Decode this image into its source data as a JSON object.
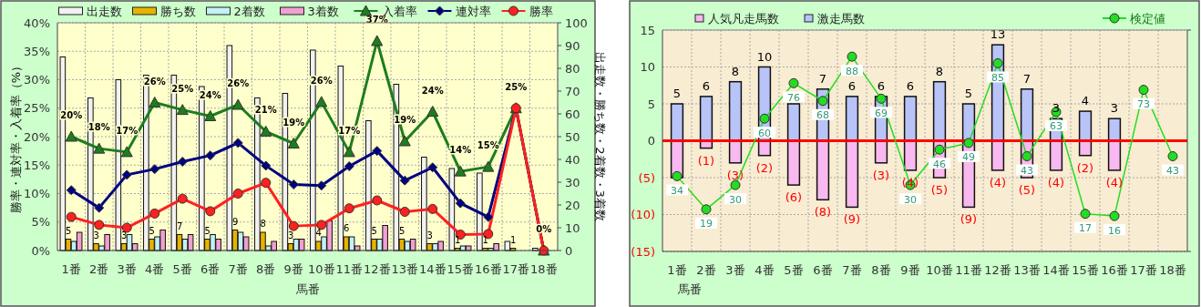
{
  "chart_data": [
    {
      "type": "bar",
      "xlabel": "馬番",
      "ylabel": "勝率・連対率・入着率（%）",
      "y2label": "出走数・勝ち数・2着数・3着数",
      "categories": [
        "1番",
        "2番",
        "3番",
        "4番",
        "5番",
        "6番",
        "7番",
        "8番",
        "9番",
        "10番",
        "11番",
        "12番",
        "13番",
        "14番",
        "15番",
        "16番",
        "17番",
        "18番"
      ],
      "series": [
        {
          "name": "出走数",
          "type": "bar",
          "axis": "y2",
          "color": "#f2f2f2",
          "values": [
            85,
            67,
            75,
            77,
            77,
            72,
            90,
            67,
            69,
            88,
            81,
            57,
            73,
            41,
            36,
            34,
            4,
            1
          ]
        },
        {
          "name": "勝ち数",
          "type": "bar",
          "axis": "y2",
          "color": "#e6b400",
          "values": [
            5,
            3,
            3,
            5,
            7,
            5,
            9,
            8,
            3,
            4,
            6,
            5,
            5,
            3,
            1,
            1,
            1,
            0
          ],
          "value_labels": [
            "5",
            "3",
            "3",
            "5",
            "7",
            "5",
            "9",
            "8",
            "3",
            "4",
            "6",
            "5",
            "5",
            "3",
            "1",
            "1",
            "1",
            null
          ]
        },
        {
          "name": "2着数",
          "type": "bar",
          "axis": "y2",
          "color": "#c4f0f8",
          "values": [
            4,
            2,
            7,
            6,
            5,
            7,
            8,
            2,
            5,
            6,
            6,
            5,
            4,
            3,
            2,
            1,
            0,
            0
          ]
        },
        {
          "name": "3着数",
          "type": "bar",
          "axis": "y2",
          "color": "#f0a0d0",
          "values": [
            8,
            7,
            3,
            9,
            7,
            5,
            6,
            4,
            5,
            13,
            2,
            11,
            5,
            4,
            2,
            3,
            0,
            0
          ]
        },
        {
          "name": "入着率",
          "type": "line",
          "marker": "triangle",
          "color": "#1e7d1e",
          "values": [
            20.0,
            17.9,
            17.3,
            26.0,
            24.7,
            23.6,
            25.6,
            20.9,
            18.8,
            26.1,
            17.3,
            36.8,
            19.2,
            24.4,
            13.9,
            14.7,
            25,
            0
          ],
          "value_labels": [
            "20%",
            "18%",
            "17%",
            "26%",
            "25%",
            "24%",
            "26%",
            "21%",
            "19%",
            "26%",
            "17%",
            "37%",
            "19%",
            "24%",
            "14%",
            "15%",
            "25%",
            "0%"
          ]
        },
        {
          "name": "連対率",
          "type": "line",
          "marker": "diamond",
          "color": "#000080",
          "values": [
            10.6,
            7.5,
            13.3,
            14.3,
            15.6,
            16.7,
            18.9,
            14.9,
            11.6,
            11.4,
            14.8,
            17.5,
            12.3,
            14.6,
            8.3,
            5.9,
            25,
            0
          ]
        },
        {
          "name": "勝率",
          "type": "line",
          "marker": "circle",
          "color": "#ff2020",
          "values": [
            5.9,
            4.5,
            4.0,
            6.5,
            9.1,
            6.9,
            10.0,
            11.9,
            4.3,
            4.5,
            7.4,
            8.8,
            6.8,
            7.3,
            2.8,
            2.9,
            25,
            0
          ]
        }
      ],
      "ylim": [
        0,
        40
      ],
      "yticks": [
        {
          "value": 0,
          "label": "0%"
        },
        {
          "value": 5,
          "label": "5%"
        },
        {
          "value": 10,
          "label": "10%"
        },
        {
          "value": 15,
          "label": "15%"
        },
        {
          "value": 20,
          "label": "20%"
        },
        {
          "value": 25,
          "label": "25%"
        },
        {
          "value": 30,
          "label": "30%"
        },
        {
          "value": 35,
          "label": "35%"
        },
        {
          "value": 40,
          "label": "40%"
        }
      ],
      "y2lim": [
        0,
        100
      ],
      "y2ticks": [
        0,
        10,
        20,
        30,
        40,
        50,
        60,
        70,
        80,
        90,
        100
      ],
      "grid": true,
      "legend": "top"
    },
    {
      "type": "bar",
      "xlabel": "馬番",
      "categories": [
        "1番",
        "2番",
        "3番",
        "4番",
        "5番",
        "6番",
        "7番",
        "8番",
        "9番",
        "10番",
        "11番",
        "12番",
        "13番",
        "14番",
        "15番",
        "16番",
        "17番",
        "18番"
      ],
      "stacked": true,
      "series": [
        {
          "name": "人気凡走馬数",
          "type": "bar",
          "color": "#f8b8f0",
          "values": [
            -5,
            -1,
            -3,
            -2,
            -6,
            -8,
            -9,
            -3,
            -4,
            -5,
            -9,
            -4,
            -5,
            -4,
            -2,
            -4,
            null,
            null
          ],
          "value_labels": [
            null,
            "(1)",
            "(3)",
            "(2)",
            "(6)",
            "(8)",
            "(9)",
            "(3)",
            "(4)",
            "(5)",
            "(9)",
            "(4)",
            "(5)",
            "(4)",
            "(2)",
            "(4)",
            null,
            null
          ]
        },
        {
          "name": "激走馬数",
          "type": "bar",
          "color": "#b8c4f8",
          "values": [
            5,
            6,
            8,
            10,
            5,
            7,
            6,
            6,
            6,
            8,
            5,
            13,
            7,
            3,
            4,
            3,
            null,
            null
          ],
          "value_labels": [
            "5",
            "6",
            "8",
            "10",
            null,
            "7",
            "6",
            "6",
            "6",
            "8",
            "5",
            "13",
            "7",
            "3",
            "4",
            "3",
            null,
            null
          ]
        },
        {
          "name": "検定値",
          "type": "line",
          "axis": "y2",
          "marker": "circle",
          "color": "#22dd22",
          "values": [
            34,
            19,
            30,
            60,
            76,
            68,
            88,
            69,
            30,
            46,
            49,
            85,
            43,
            63,
            17,
            16,
            73,
            43
          ],
          "value_labels": [
            "34",
            "19",
            "30",
            "60",
            "76",
            "68",
            "88",
            "69",
            "30",
            "46",
            "49",
            "85",
            "43",
            "63",
            "17",
            "16",
            "73",
            "43"
          ]
        }
      ],
      "ylim": [
        -15,
        15
      ],
      "yticks": [
        {
          "value": -15,
          "label": "(15)"
        },
        {
          "value": -10,
          "label": "(10)"
        },
        {
          "value": -5,
          "label": "(5)"
        },
        0,
        5,
        10,
        15
      ],
      "y2lim": [
        0,
        100
      ],
      "y2ticks": [
        {
          "value": 0,
          "label": null
        },
        {
          "value": 100,
          "label": null
        }
      ],
      "ref_lines": [
        {
          "axis": "y",
          "value": 0,
          "color": "#ff0000"
        }
      ],
      "grid": true,
      "legend": "top"
    }
  ]
}
